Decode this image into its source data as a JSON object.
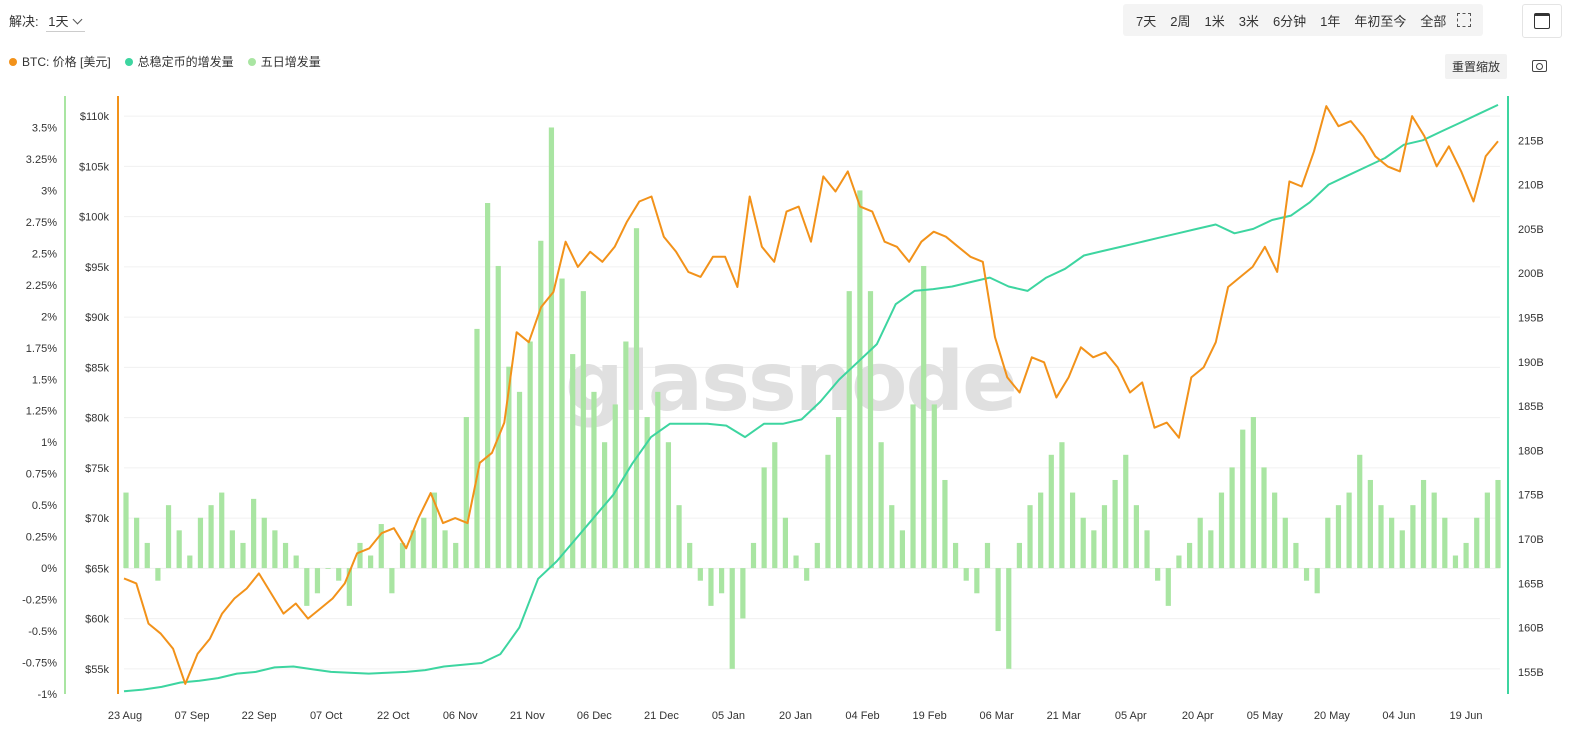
{
  "resolution": {
    "label": "解决:",
    "value": "1天"
  },
  "time_ranges": [
    "7天",
    "2周",
    "1米",
    "3米",
    "6分钟",
    "1年",
    "年初至今",
    "全部"
  ],
  "toolbar": {
    "reset_label": "重置缩放",
    "zoom_icon": "zoom-select-icon",
    "calendar_icon": "calendar-icon",
    "camera_icon": "camera-icon"
  },
  "legend": [
    {
      "label": "BTC: 价格 [美元]",
      "color": "#f2921a"
    },
    {
      "label": "总稳定币的增发量",
      "color": "#3dd5a0"
    },
    {
      "label": "五日增发量",
      "color": "#a9e5a2"
    }
  ],
  "watermark": "glassnode",
  "chart_data": {
    "type": "line",
    "x_ticks": [
      "23 Aug",
      "07 Sep",
      "22 Sep",
      "07 Oct",
      "22 Oct",
      "06 Nov",
      "21 Nov",
      "06 Dec",
      "21 Dec",
      "05 Jan",
      "20 Jan",
      "04 Feb",
      "19 Feb",
      "06 Mar",
      "21 Mar",
      "05 Apr",
      "20 Apr",
      "05 May",
      "20 May",
      "04 Jun",
      "19 Jun"
    ],
    "y_left_pct_ticks": [
      "3.5%",
      "3.25%",
      "3%",
      "2.75%",
      "2.5%",
      "2.25%",
      "2%",
      "1.75%",
      "1.5%",
      "1.25%",
      "1%",
      "0.75%",
      "0.5%",
      "0.25%",
      "0%",
      "-0.25%",
      "-0.5%",
      "-0.75%",
      "-1%"
    ],
    "y_left_price_ticks": [
      "$110k",
      "$105k",
      "$100k",
      "$95k",
      "$90k",
      "$85k",
      "$80k",
      "$75k",
      "$70k",
      "$65k",
      "$60k",
      "$55k"
    ],
    "y_right_ticks": [
      "215B",
      "210B",
      "205B",
      "200B",
      "195B",
      "190B",
      "185B",
      "180B",
      "175B",
      "170B",
      "165B",
      "160B",
      "155B"
    ],
    "axes": {
      "pct_range": [
        -1,
        3.75
      ],
      "price_range": [
        52500,
        112000
      ],
      "supply_range": [
        152.5,
        220
      ]
    },
    "start_day": 0,
    "series": [
      {
        "name": "BTC: 价格 [美元]",
        "color": "#f2921a",
        "unit": "USD",
        "step_days": 3,
        "values": [
          64000,
          63500,
          59500,
          58500,
          57000,
          53500,
          56500,
          58000,
          60500,
          62000,
          63000,
          64500,
          62500,
          60500,
          61500,
          60000,
          61000,
          62000,
          63500,
          66500,
          67000,
          68500,
          69000,
          67000,
          70000,
          72500,
          69500,
          70000,
          69500,
          75500,
          76500,
          79500,
          88500,
          87500,
          91000,
          92500,
          97500,
          95000,
          96500,
          95500,
          97000,
          99500,
          101500,
          102000,
          98000,
          96500,
          94500,
          94000,
          96000,
          96000,
          93000,
          102000,
          97000,
          95500,
          100500,
          101000,
          97500,
          104000,
          102500,
          104500,
          101000,
          100500,
          97500,
          97000,
          95500,
          97500,
          98500,
          98000,
          97000,
          96000,
          95500,
          88000,
          84000,
          82500,
          86000,
          85500,
          82000,
          84000,
          87000,
          86000,
          86500,
          85000,
          82500,
          83500,
          79000,
          79500,
          78000,
          84000,
          85000,
          87500,
          93000,
          94000,
          95000,
          97000,
          94500,
          103500,
          103000,
          106500,
          111000,
          109000,
          109500,
          108000,
          106000,
          105000,
          104500,
          110000,
          108000,
          105000,
          107000,
          104500,
          101500,
          106000,
          107500
        ]
      },
      {
        "name": "总稳定币的增发量",
        "color": "#3dd5a0",
        "unit": "B",
        "step_days": 3,
        "values": [
          152.8,
          153.0,
          153.3,
          153.8,
          154.0,
          154.3,
          154.8,
          155.0,
          155.5,
          155.6,
          155.3,
          155.0,
          154.9,
          154.8,
          154.9,
          155.0,
          155.2,
          155.6,
          155.8,
          156.0,
          157.0,
          160.0,
          165.5,
          167.5,
          170.0,
          172.5,
          175.0,
          178.5,
          181.5,
          183.0,
          183.0,
          183.0,
          182.8,
          181.5,
          183.0,
          183.0,
          183.5,
          185.5,
          188.0,
          190.0,
          192.0,
          196.5,
          198.0,
          198.2,
          198.5,
          199.0,
          199.5,
          198.5,
          198.0,
          199.5,
          200.5,
          202.0,
          202.5,
          203.0,
          203.5,
          204.0,
          204.5,
          205.0,
          205.5,
          204.5,
          205.0,
          206.0,
          206.5,
          208.0,
          210.0,
          211.0,
          212.0,
          213.0,
          214.5,
          215.0,
          216.0,
          217.0,
          218.0,
          219.0
        ]
      },
      {
        "name": "五日增发量",
        "color": "#a9e5a2",
        "unit": "%",
        "type": "bar",
        "values": [
          0.6,
          0.4,
          0.2,
          -0.1,
          0.5,
          0.3,
          0.1,
          0.4,
          0.5,
          0.6,
          0.3,
          0.2,
          0.55,
          0.4,
          0.3,
          0.2,
          0.1,
          -0.3,
          -0.2,
          0.0,
          -0.1,
          -0.3,
          0.2,
          0.1,
          0.35,
          -0.2,
          0.2,
          0.3,
          0.4,
          0.6,
          0.3,
          0.2,
          1.2,
          1.9,
          2.9,
          2.4,
          1.6,
          1.4,
          1.8,
          2.6,
          3.5,
          2.3,
          1.7,
          2.2,
          1.4,
          1.0,
          1.3,
          1.8,
          2.7,
          1.2,
          1.4,
          1.0,
          0.5,
          0.2,
          -0.1,
          -0.3,
          -0.2,
          -0.8,
          -0.4,
          0.2,
          0.8,
          1.0,
          0.4,
          0.1,
          -0.1,
          0.2,
          0.9,
          1.2,
          2.2,
          3.0,
          2.2,
          1.0,
          0.5,
          0.3,
          1.3,
          2.4,
          1.3,
          0.7,
          0.2,
          -0.1,
          -0.2,
          0.2,
          -0.5,
          -0.8,
          0.2,
          0.5,
          0.6,
          0.9,
          1.0,
          0.6,
          0.4,
          0.3,
          0.5,
          0.7,
          0.9,
          0.5,
          0.3,
          -0.1,
          -0.3,
          0.1,
          0.2,
          0.4,
          0.3,
          0.6,
          0.8,
          1.1,
          1.2,
          0.8,
          0.6,
          0.4,
          0.2,
          -0.1,
          -0.2,
          0.4,
          0.5,
          0.6,
          0.9,
          0.7,
          0.5,
          0.4,
          0.3,
          0.5,
          0.7,
          0.6,
          0.4,
          0.1,
          0.2,
          0.4,
          0.6,
          0.7
        ]
      }
    ]
  }
}
